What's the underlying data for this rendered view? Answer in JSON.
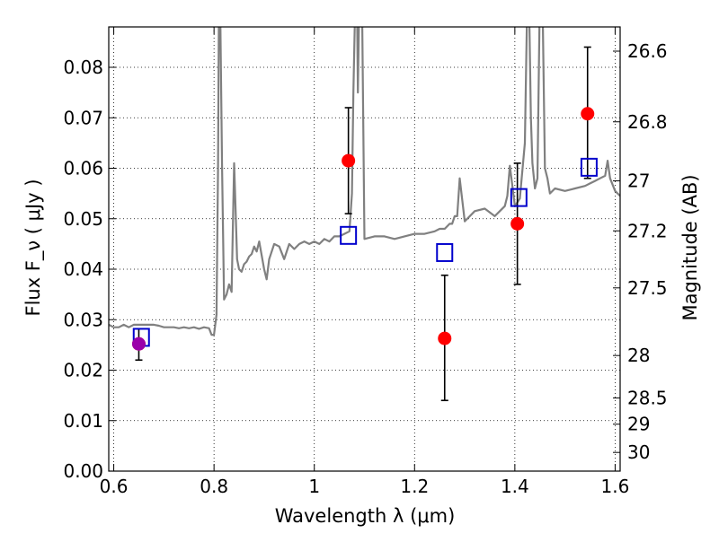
{
  "chart_data": {
    "type": "scatter",
    "xlabel": "Wavelength  λ (μm)",
    "ylabel": "Flux  F_ν  ( μJy )",
    "y2label": "Magnitude (AB)",
    "xlim": [
      0.59,
      1.61
    ],
    "ylim": [
      0.0,
      0.088
    ],
    "grid": true,
    "x_ticks": [
      0.6,
      0.8,
      1.0,
      1.2,
      1.4,
      1.6
    ],
    "x_tick_labels": [
      "0.6",
      "0.8",
      "1",
      "1.2",
      "1.4",
      "1.6"
    ],
    "y_ticks": [
      0.0,
      0.01,
      0.02,
      0.03,
      0.04,
      0.05,
      0.06,
      0.07,
      0.08
    ],
    "y_tick_labels": [
      "0.00",
      "0.01",
      "0.02",
      "0.03",
      "0.04",
      "0.05",
      "0.06",
      "0.07",
      "0.08"
    ],
    "y2_ticks": [
      {
        "label": "26.6",
        "flux": 0.0832
      },
      {
        "label": "26.8",
        "flux": 0.0692
      },
      {
        "label": "27",
        "flux": 0.0575
      },
      {
        "label": "27.2",
        "flux": 0.0476
      },
      {
        "label": "27.5",
        "flux": 0.0363
      },
      {
        "label": "28",
        "flux": 0.0229
      },
      {
        "label": "28.5",
        "flux": 0.0145
      },
      {
        "label": "29",
        "flux": 0.0093
      },
      {
        "label": "30",
        "flux": 0.0037
      }
    ],
    "series": [
      {
        "kind": "line",
        "color": "#808080",
        "x": [
          0.59,
          0.6,
          0.61,
          0.62,
          0.63,
          0.64,
          0.65,
          0.66,
          0.67,
          0.68,
          0.69,
          0.7,
          0.71,
          0.72,
          0.73,
          0.74,
          0.75,
          0.76,
          0.77,
          0.78,
          0.79,
          0.795,
          0.8,
          0.805,
          0.808,
          0.81,
          0.812,
          0.816,
          0.82,
          0.825,
          0.83,
          0.835,
          0.84,
          0.843,
          0.846,
          0.85,
          0.855,
          0.86,
          0.865,
          0.87,
          0.875,
          0.88,
          0.885,
          0.89,
          0.9,
          0.905,
          0.91,
          0.92,
          0.93,
          0.94,
          0.95,
          0.96,
          0.97,
          0.98,
          0.99,
          1.0,
          1.01,
          1.02,
          1.03,
          1.04,
          1.05,
          1.06,
          1.07,
          1.075,
          1.078,
          1.082,
          1.085,
          1.087,
          1.09,
          1.095,
          1.1,
          1.12,
          1.14,
          1.16,
          1.18,
          1.2,
          1.22,
          1.24,
          1.25,
          1.26,
          1.27,
          1.275,
          1.28,
          1.285,
          1.29,
          1.3,
          1.32,
          1.34,
          1.36,
          1.37,
          1.38,
          1.385,
          1.39,
          1.4,
          1.41,
          1.42,
          1.425,
          1.428,
          1.432,
          1.435,
          1.44,
          1.445,
          1.45,
          1.455,
          1.46,
          1.465,
          1.47,
          1.48,
          1.5,
          1.52,
          1.54,
          1.55,
          1.56,
          1.57,
          1.58,
          1.585,
          1.59,
          1.6,
          1.61
        ],
        "y": [
          0.029,
          0.0285,
          0.0285,
          0.029,
          0.0285,
          0.029,
          0.029,
          0.029,
          0.029,
          0.029,
          0.0288,
          0.0285,
          0.0285,
          0.0285,
          0.0283,
          0.0285,
          0.0283,
          0.0285,
          0.0282,
          0.0285,
          0.0283,
          0.027,
          0.027,
          0.031,
          0.06,
          0.095,
          0.095,
          0.06,
          0.034,
          0.035,
          0.037,
          0.0355,
          0.061,
          0.052,
          0.042,
          0.04,
          0.0395,
          0.041,
          0.0415,
          0.0425,
          0.043,
          0.0445,
          0.0435,
          0.0455,
          0.04,
          0.038,
          0.042,
          0.045,
          0.0445,
          0.042,
          0.045,
          0.044,
          0.045,
          0.0455,
          0.045,
          0.0455,
          0.045,
          0.046,
          0.0455,
          0.0465,
          0.0465,
          0.047,
          0.0475,
          0.055,
          0.075,
          0.095,
          0.095,
          0.075,
          0.095,
          0.095,
          0.046,
          0.0465,
          0.0465,
          0.046,
          0.0465,
          0.047,
          0.047,
          0.0475,
          0.048,
          0.048,
          0.049,
          0.049,
          0.0505,
          0.0505,
          0.058,
          0.0495,
          0.0515,
          0.052,
          0.0505,
          0.0515,
          0.0525,
          0.0545,
          0.0605,
          0.0525,
          0.054,
          0.065,
          0.095,
          0.095,
          0.07,
          0.061,
          0.056,
          0.058,
          0.095,
          0.095,
          0.06,
          0.058,
          0.055,
          0.056,
          0.0555,
          0.056,
          0.0565,
          0.057,
          0.0575,
          0.058,
          0.0585,
          0.0615,
          0.058,
          0.0555,
          0.0545
        ]
      },
      {
        "kind": "points_with_errorbars",
        "color": "#ff0000",
        "marker": "circle",
        "x": [
          0.65,
          1.068,
          1.26,
          1.405,
          1.545
        ],
        "y": [
          0.0252,
          0.0615,
          0.0263,
          0.049,
          0.0708
        ],
        "yerr_low": [
          0.0032,
          0.0105,
          0.0123,
          0.012,
          0.0128
        ],
        "yerr_high": [
          0.003,
          0.0105,
          0.0125,
          0.012,
          0.0132
        ]
      },
      {
        "kind": "points",
        "color": "#0000cc",
        "marker": "open-square",
        "x": [
          0.655,
          1.068,
          1.26,
          1.408,
          1.548
        ],
        "y": [
          0.0265,
          0.0467,
          0.0433,
          0.0542,
          0.0602
        ]
      },
      {
        "kind": "points",
        "color": "#9a00aa",
        "marker": "circle",
        "x": [
          0.65
        ],
        "y": [
          0.0252
        ]
      }
    ]
  }
}
